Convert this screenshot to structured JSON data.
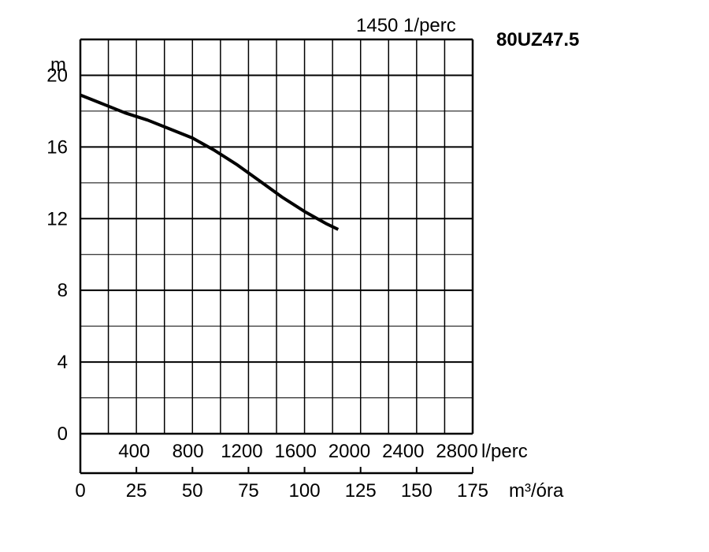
{
  "chart_data": {
    "type": "line",
    "model": "80UZ47.5",
    "speed_label": "1450 1/perc",
    "ylabel": "m",
    "ylim": [
      0,
      22
    ],
    "yticks": [
      0,
      4,
      8,
      12,
      16,
      20
    ],
    "xlim_m3h": [
      0,
      175
    ],
    "x_ticks_m3h": [
      0,
      25,
      50,
      75,
      100,
      125,
      150,
      175
    ],
    "x_unit_m3h": "m³/óra",
    "x_ticks_lpm": [
      400,
      800,
      1200,
      1600,
      2000,
      2400,
      2800
    ],
    "x_unit_lpm": "l/perc",
    "grid": true,
    "series": [
      {
        "x": [
          0,
          10,
          20,
          30,
          40,
          50,
          60,
          70,
          80,
          90,
          100,
          110,
          115
        ],
        "y": [
          18.9,
          18.4,
          17.9,
          17.5,
          17.0,
          16.5,
          15.8,
          15.0,
          14.1,
          13.2,
          12.4,
          11.7,
          11.4
        ]
      }
    ]
  }
}
